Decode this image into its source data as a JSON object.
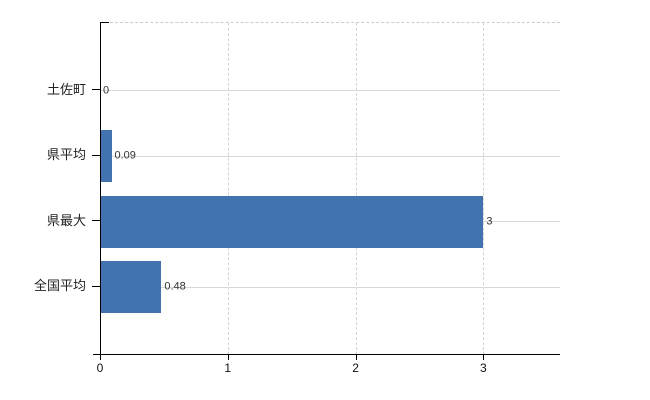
{
  "chart_data": {
    "type": "bar",
    "orientation": "horizontal",
    "title": "",
    "categories": [
      "土佐町",
      "県平均",
      "県最大",
      "全国平均"
    ],
    "values": [
      0,
      0.09,
      3,
      0.48
    ],
    "value_labels": [
      "0",
      "0.09",
      "3",
      "0.48"
    ],
    "x_ticks": [
      0,
      1,
      2,
      3
    ],
    "x_tick_labels": [
      "0",
      "1",
      "2",
      "3"
    ],
    "xlim": [
      0,
      3.6
    ],
    "grid": true,
    "legend": "none",
    "colors": {
      "bar": "#4173af",
      "axis": "#000000",
      "grid_horizontal": "#d5dbd5",
      "grid_vertical": "#d2d2d2",
      "value_label": "#333333",
      "category_label": "#222222",
      "tick_label": "#111111"
    }
  }
}
